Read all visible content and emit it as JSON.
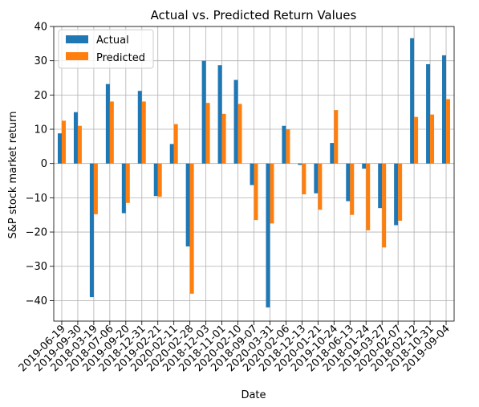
{
  "chart_data": {
    "type": "bar",
    "title": "Actual vs. Predicted Return Values",
    "xlabel": "Date",
    "ylabel": "S&P stock market return",
    "ylim": [
      -46,
      40
    ],
    "yticks": [
      -40,
      -30,
      -20,
      -10,
      0,
      10,
      20,
      30,
      40
    ],
    "grid": true,
    "legend_position": "top-left",
    "categories": [
      "2019-06-19",
      "2019-09-30",
      "2018-03-19",
      "2018-07-06",
      "2019-09-20",
      "2018-12-31",
      "2019-02-21",
      "2020-02-11",
      "2020-02-28",
      "2018-12-03",
      "2018-11-01",
      "2020-02-10",
      "2018-09-07",
      "2020-03-31",
      "2020-02-06",
      "2018-12-13",
      "2020-01-21",
      "2019-10-24",
      "2018-06-13",
      "2018-01-24",
      "2019-03-27",
      "2020-02-07",
      "2018-02-12",
      "2018-10-31",
      "2019-09-04"
    ],
    "series": [
      {
        "name": "Actual",
        "color": "#1f77b4",
        "values": [
          8.8,
          15.0,
          -39.0,
          23.2,
          -14.5,
          21.2,
          -9.5,
          5.7,
          -24.2,
          30.0,
          28.7,
          24.4,
          -6.3,
          -42.0,
          11.0,
          -0.4,
          -8.7,
          6.0,
          -11.0,
          -1.5,
          -13.0,
          -18.0,
          36.6,
          29.0,
          31.6
        ]
      },
      {
        "name": "Predicted",
        "color": "#ff7f0e",
        "values": [
          12.5,
          11.0,
          -14.8,
          18.1,
          -11.5,
          18.1,
          -9.7,
          11.5,
          -38.0,
          17.7,
          14.5,
          17.4,
          -16.5,
          -17.5,
          10.0,
          -9.0,
          -13.5,
          15.6,
          -15.0,
          -19.5,
          -24.5,
          -16.7,
          13.6,
          14.3,
          18.8
        ]
      }
    ]
  }
}
